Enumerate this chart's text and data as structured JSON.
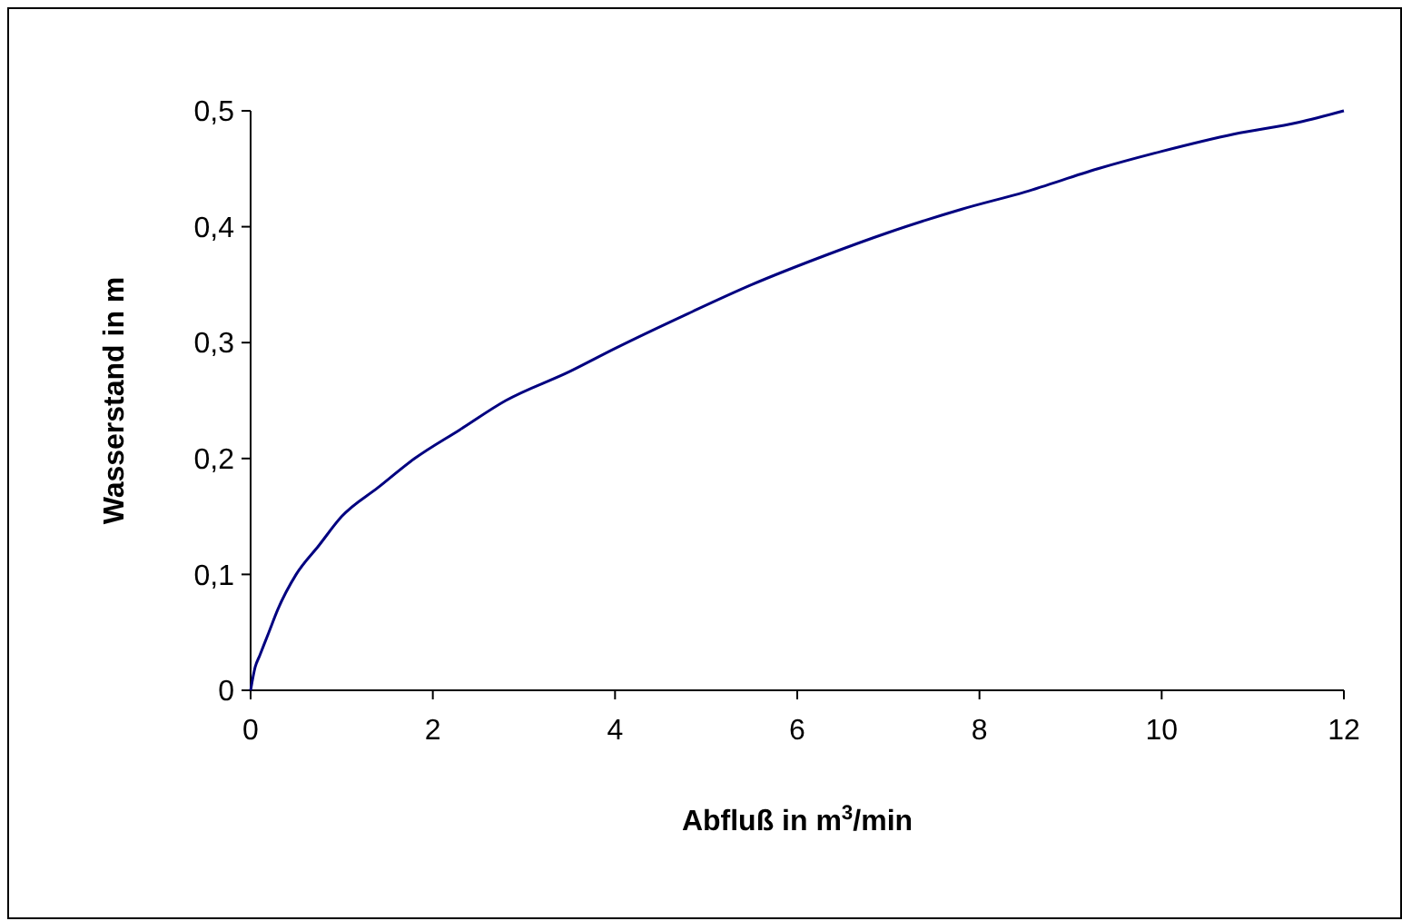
{
  "chart_data": {
    "type": "line",
    "xlabel": "Abfluß in m$^{3}$/min",
    "ylabel": "Wasserstand in m",
    "xlim": [
      0,
      12
    ],
    "xticks": [
      0,
      2,
      4,
      6,
      8,
      10,
      12
    ],
    "ylim": [
      0,
      0.5
    ],
    "yticks": [
      {
        "value": 0,
        "label": "0"
      },
      {
        "value": 0.1,
        "label": "0,1"
      },
      {
        "value": 0.2,
        "label": "0,2"
      },
      {
        "value": 0.3,
        "label": "0,3"
      },
      {
        "value": 0.4,
        "label": "0,4"
      },
      {
        "value": 0.5,
        "label": "0,5"
      }
    ],
    "grid": false,
    "marker": "none",
    "line_style": "solid",
    "series": [
      {
        "color": "#000080",
        "x": [
          0,
          0.05,
          0.1,
          0.2,
          0.3,
          0.5,
          0.75,
          1,
          1.4,
          1.8,
          2.3,
          2.8,
          3.5,
          4,
          4.8,
          5.5,
          6.3,
          7,
          7.8,
          8.5,
          9.3,
          10,
          10.8,
          11.5,
          12
        ],
        "values": [
          0,
          0.02,
          0.03,
          0.05,
          0.07,
          0.1,
          0.125,
          0.15,
          0.175,
          0.2,
          0.225,
          0.25,
          0.275,
          0.295,
          0.325,
          0.35,
          0.375,
          0.395,
          0.415,
          0.43,
          0.45,
          0.465,
          0.48,
          0.49,
          0.5
        ]
      }
    ]
  }
}
